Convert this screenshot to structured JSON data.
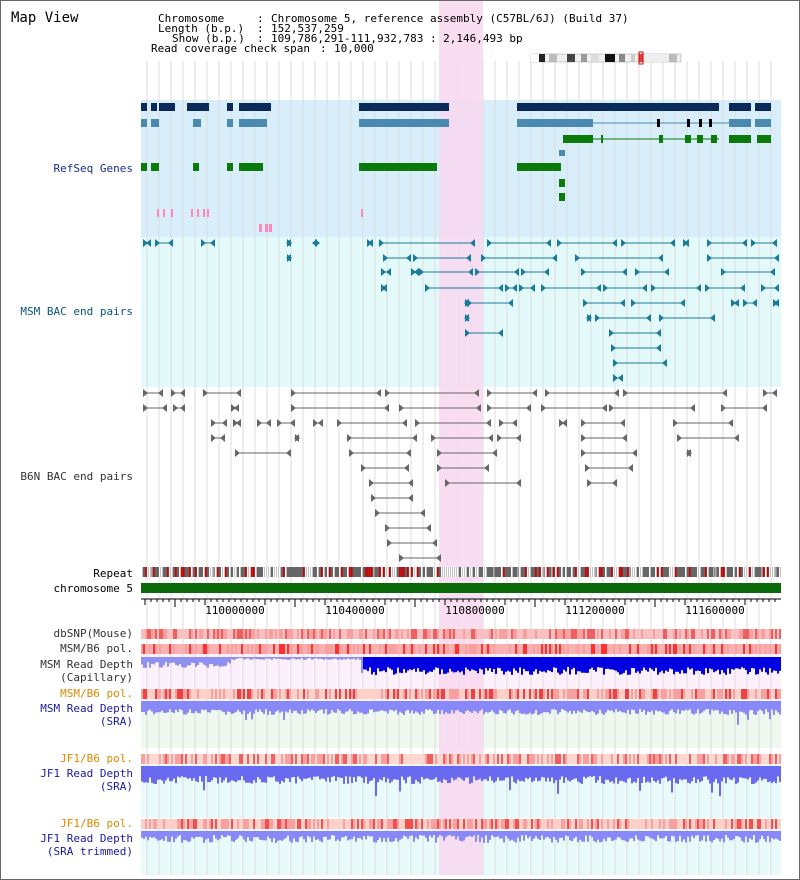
{
  "title": "Map View",
  "info": {
    "chromosome_key": "Chromosome",
    "chromosome_val": "Chromosome 5, reference assembly (C57BL/6J) (Build 37)",
    "length_key": "Length (b.p.)",
    "length_val": "152,537,259",
    "show_key": "Show (b.p.)",
    "show_val": "109,786,291-111,932,783 : 2,146,493 bp",
    "coverage_key": "Read coverage check span",
    "coverage_val": "10,000"
  },
  "tracks": {
    "refseq": "RefSeq Genes",
    "msm_bac": "MSM BAC end pairs",
    "b6n_bac": "B6N BAC end pairs",
    "repeat": "Repeat",
    "chromosome": "chromosome 5",
    "dbsnp": "dbSNP(Mouse)",
    "msm_b6_pol_1": "MSM/B6 pol.",
    "msm_depth_cap": "MSM Read Depth\n(Capillary)",
    "msm_b6_pol_2": "MSM/B6 pol.",
    "msm_depth_sra": "MSM Read Depth\n(SRA)",
    "jf1_b6_pol_1": "JF1/B6 pol.",
    "jf1_depth_sra": "JF1 Read Depth\n(SRA)",
    "jf1_b6_pol_2": "JF1/B6 pol.",
    "jf1_depth_trim": "JF1 Read Depth\n(SRA trimmed)"
  },
  "axis": {
    "ticks": [
      "110000000",
      "110400000",
      "110800000",
      "111200000",
      "111600000"
    ]
  },
  "colors": {
    "refseq_bg": "#d8eefa",
    "bac_bg": "#e4fafa",
    "highlight": "#f8d8f0",
    "gene_dark": "#0a2a5a",
    "gene_mid": "#4a8ab0",
    "gene_green": "#0a7a0a",
    "chromosome_bar": "#0a6a0a",
    "depth_blue": "#0000e0",
    "depth_light": "#8888f8"
  }
}
